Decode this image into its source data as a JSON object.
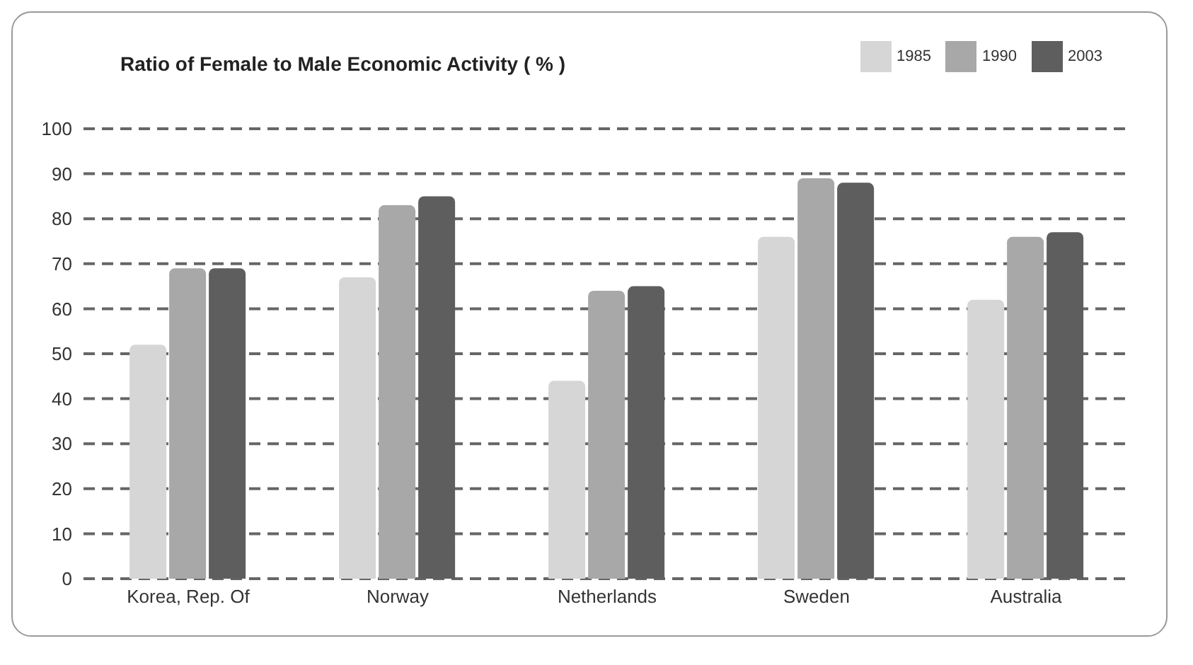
{
  "chart_data": {
    "type": "bar",
    "title": "Ratio of Female to Male Economic Activity ( % )",
    "categories": [
      "Korea, Rep. Of",
      "Norway",
      "Netherlands",
      "Sweden",
      "Australia"
    ],
    "series": [
      {
        "name": "1985",
        "color": "#d6d6d6",
        "values": [
          52,
          67,
          44,
          76,
          62
        ]
      },
      {
        "name": "1990",
        "color": "#a8a8a8",
        "values": [
          69,
          83,
          64,
          89,
          76
        ]
      },
      {
        "name": "2003",
        "color": "#5e5e5e",
        "values": [
          69,
          85,
          65,
          88,
          77
        ]
      }
    ],
    "ylim": [
      0,
      100
    ],
    "yticks": [
      0,
      10,
      20,
      30,
      40,
      50,
      60,
      70,
      80,
      90,
      100
    ],
    "grid": "y",
    "legend": "top right"
  }
}
